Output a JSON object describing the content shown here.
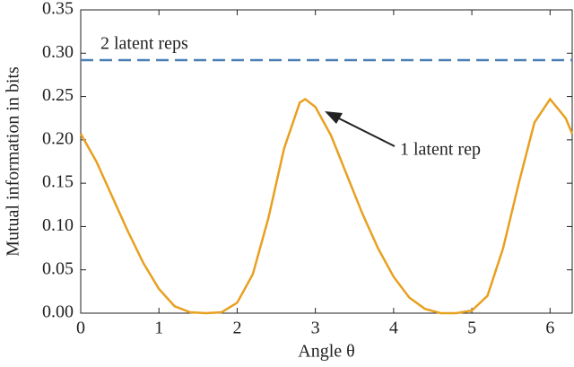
{
  "chart_data": {
    "type": "line",
    "xlabel": "Angle θ",
    "ylabel": "Mutual information in bits",
    "xlim": [
      0,
      6.283
    ],
    "ylim": [
      0,
      0.35
    ],
    "xticks": [
      0,
      1,
      2,
      3,
      4,
      5,
      6
    ],
    "yticks": [
      {
        "value": 0,
        "label": "0.00"
      },
      {
        "value": 0.05,
        "label": "0.05"
      },
      {
        "value": 0.1,
        "label": "0.10"
      },
      {
        "value": 0.15,
        "label": "0.15"
      },
      {
        "value": 0.2,
        "label": "0.20"
      },
      {
        "value": 0.25,
        "label": "0.25"
      },
      {
        "value": 0.3,
        "label": "0.30"
      },
      {
        "value": 0.35,
        "label": "0.35"
      }
    ],
    "series": [
      {
        "name": "1 latent rep",
        "color": "#e8a020",
        "dash": false,
        "x": [
          0,
          0.2,
          0.4,
          0.6,
          0.8,
          1.0,
          1.2,
          1.4,
          1.6,
          1.8,
          2.0,
          2.2,
          2.4,
          2.6,
          2.8,
          2.87,
          3.0,
          3.2,
          3.4,
          3.6,
          3.8,
          4.0,
          4.2,
          4.4,
          4.6,
          4.8,
          5.0,
          5.2,
          5.4,
          5.6,
          5.8,
          6.0,
          6.2,
          6.283
        ],
        "values": [
          0.207,
          0.175,
          0.135,
          0.095,
          0.058,
          0.028,
          0.008,
          0.001,
          0,
          0.001,
          0.012,
          0.045,
          0.11,
          0.19,
          0.243,
          0.247,
          0.238,
          0.205,
          0.16,
          0.115,
          0.075,
          0.042,
          0.018,
          0.005,
          0,
          0,
          0.003,
          0.02,
          0.075,
          0.15,
          0.22,
          0.247,
          0.225,
          0.207
        ]
      },
      {
        "name": "2 latent reps",
        "color": "#4a7fb5",
        "dash": true,
        "x": [
          0,
          6.283
        ],
        "values": [
          0.292,
          0.292
        ]
      }
    ]
  }
}
